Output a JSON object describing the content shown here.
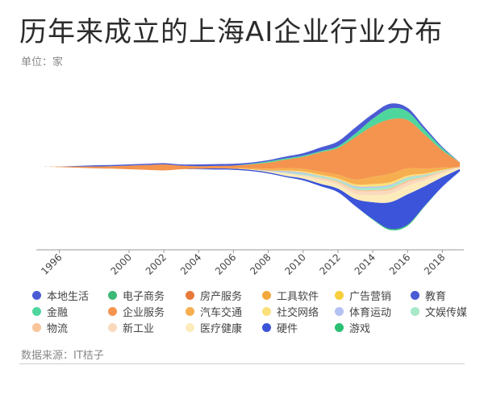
{
  "header": {
    "title": "历年来成立的上海AI企业行业分布",
    "unit": "单位：家"
  },
  "footer": {
    "source": "数据来源：IT桔子"
  },
  "chart_data": {
    "type": "area",
    "subtype": "streamgraph",
    "title": "历年来成立的上海AI企业行业分布",
    "unit": "单位：家",
    "x_ticks": [
      "1996",
      "2000",
      "2002",
      "2004",
      "2006",
      "2008",
      "2010",
      "2012",
      "2014",
      "2016",
      "2018"
    ],
    "xlim": [
      1995,
      2019
    ],
    "x": [
      1995,
      1996,
      1997,
      1998,
      1999,
      2000,
      2001,
      2002,
      2003,
      2004,
      2005,
      2006,
      2007,
      2008,
      2009,
      2010,
      2011,
      2012,
      2013,
      2014,
      2015,
      2016,
      2017,
      2018,
      2019
    ],
    "series": [
      {
        "name": "本地生活",
        "color": "#4a5bd4",
        "values": [
          0,
          0,
          0,
          0,
          0,
          0,
          0,
          0,
          0,
          0,
          0,
          0,
          0,
          0,
          0,
          0,
          0,
          0,
          0,
          0,
          0,
          0,
          0,
          0,
          0
        ]
      },
      {
        "name": "电子商务",
        "color": "#3cb878",
        "values": [
          0,
          0,
          0,
          0,
          0,
          0,
          0,
          0,
          0,
          0,
          0,
          0,
          0,
          0,
          0,
          0,
          0,
          0,
          0,
          0,
          0,
          0,
          0,
          0,
          0
        ]
      },
      {
        "name": "房产服务",
        "color": "#e8793a",
        "values": [
          0,
          0,
          0,
          0,
          0,
          0,
          0,
          0,
          0,
          0,
          0,
          0,
          0,
          0,
          0,
          0,
          0,
          0,
          0,
          0,
          0,
          0,
          0,
          0,
          0
        ]
      },
      {
        "name": "工具软件",
        "color": "#f2a93b",
        "values": [
          0,
          0,
          0,
          0,
          0,
          0,
          0,
          0,
          0,
          0,
          0,
          0,
          0,
          0,
          0,
          0,
          0,
          0,
          0,
          0,
          0,
          0,
          0,
          0,
          0
        ]
      },
      {
        "name": "广告营销",
        "color": "#f7cf3a",
        "values": [
          0,
          0,
          0,
          0,
          0,
          0,
          0,
          0,
          0,
          0,
          0,
          0,
          0,
          0,
          0,
          0,
          0,
          0,
          0,
          0,
          0,
          0,
          0,
          0,
          0
        ]
      },
      {
        "name": "教育",
        "color": "#4a5bd4",
        "values": [
          0,
          0,
          0.5,
          1,
          1,
          1,
          1,
          1,
          1,
          1.5,
          1.5,
          1.5,
          1,
          1,
          1.5,
          2,
          3,
          4,
          5,
          4,
          4,
          3,
          2,
          1,
          0
        ]
      },
      {
        "name": "金融",
        "color": "#4fd69c",
        "values": [
          0,
          0,
          0,
          0,
          0,
          0,
          0,
          0,
          0,
          0,
          0,
          0,
          0.5,
          1,
          1,
          1,
          1,
          1.5,
          3,
          6,
          9,
          7,
          4,
          2,
          0
        ]
      },
      {
        "name": "企业服务",
        "color": "#f4944e",
        "values": [
          0,
          0.5,
          1,
          1.5,
          2,
          3,
          4,
          5,
          3,
          2,
          2,
          2,
          3,
          5,
          7,
          10,
          16,
          22,
          35,
          42,
          45,
          40,
          28,
          14,
          4
        ]
      },
      {
        "name": "汽车交通",
        "color": "#f7ae4f",
        "values": [
          0,
          0,
          0,
          0,
          0,
          0,
          0,
          0,
          0,
          0,
          0,
          0.5,
          1,
          1.5,
          2,
          2,
          2.5,
          3,
          4,
          6,
          7,
          6,
          4,
          2,
          0
        ]
      },
      {
        "name": "社交网络",
        "color": "#fbe07a",
        "values": [
          0,
          0,
          0,
          0,
          0,
          0,
          0,
          0,
          0,
          0,
          0,
          0,
          0,
          0,
          0.5,
          1,
          1,
          1,
          1.5,
          2,
          2,
          1.5,
          1,
          0.5,
          0
        ]
      },
      {
        "name": "体育运动",
        "color": "#b4c1f2",
        "values": [
          0,
          0,
          0,
          0,
          0,
          0,
          0,
          0,
          0,
          0,
          0,
          0,
          0,
          0.5,
          1,
          1,
          0.5,
          0.5,
          1,
          1,
          1,
          0.5,
          0.5,
          0,
          0
        ]
      },
      {
        "name": "文娱传媒",
        "color": "#a6e8c9",
        "values": [
          0,
          0,
          0,
          0,
          0,
          0,
          0,
          0,
          0,
          0,
          0,
          0,
          0,
          0,
          0.5,
          1,
          1,
          1,
          1.5,
          2,
          2,
          2,
          1,
          0.5,
          0
        ]
      },
      {
        "name": "物流",
        "color": "#f9c59a",
        "values": [
          0,
          0,
          0,
          0,
          0,
          0,
          0,
          0,
          0,
          0,
          0,
          0,
          0,
          0,
          0,
          0,
          0.5,
          1,
          1,
          1,
          1.5,
          1.5,
          1,
          0.5,
          0
        ]
      },
      {
        "name": "新工业",
        "color": "#fad9bd",
        "values": [
          0,
          0,
          0,
          0,
          0,
          0,
          0,
          0,
          0,
          0,
          0,
          0,
          0,
          0,
          0.5,
          1,
          1.5,
          2,
          3,
          3,
          3,
          3,
          2,
          1.5,
          0.5
        ]
      },
      {
        "name": "医疗健康",
        "color": "#fdebbb",
        "values": [
          0,
          0,
          0,
          0,
          0,
          0,
          0,
          0,
          0,
          0,
          0,
          0,
          0.5,
          1,
          2,
          2,
          3,
          3,
          4,
          6,
          7,
          7,
          5,
          3,
          1
        ]
      },
      {
        "name": "硬件",
        "color": "#3b54d9",
        "values": [
          0,
          0,
          0,
          0,
          0,
          0,
          0,
          0,
          0,
          0.5,
          1,
          1,
          1,
          1,
          1,
          1.5,
          2,
          3,
          6,
          14,
          22,
          25,
          16,
          8,
          2
        ]
      },
      {
        "name": "游戏",
        "color": "#2bbf73",
        "values": [
          0,
          0,
          0,
          0,
          0,
          0,
          0,
          0,
          0,
          0,
          0,
          0,
          0,
          0,
          0,
          0,
          0,
          0,
          0,
          0.5,
          1,
          1,
          0.5,
          0,
          0
        ]
      }
    ],
    "legend_position": "bottom",
    "grid": false
  }
}
